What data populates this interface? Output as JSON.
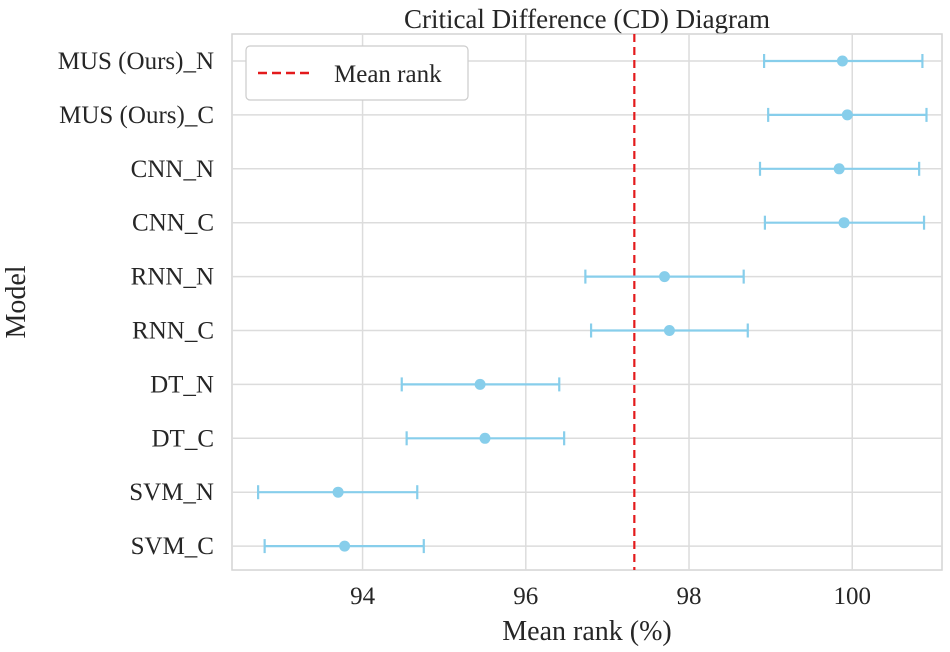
{
  "chart_data": {
    "type": "errorbar",
    "title": "Critical Difference (CD) Diagram",
    "xlabel": "Mean rank (%)",
    "ylabel": "Model",
    "xlim": [
      92.4,
      101.1
    ],
    "xticks": [
      94,
      96,
      98,
      100
    ],
    "grid": true,
    "legend_position": "top-left",
    "legend": [
      {
        "label": "Mean rank",
        "style": "dashed",
        "color": "#e31a1c"
      }
    ],
    "mean_rank_line": 97.33,
    "series_color": "#87ceeb",
    "models": [
      {
        "name": "MUS (Ours)_N",
        "value": 99.88,
        "lower": 98.92,
        "upper": 100.86
      },
      {
        "name": "MUS (Ours)_C",
        "value": 99.94,
        "lower": 98.97,
        "upper": 100.91
      },
      {
        "name": "CNN_N",
        "value": 99.84,
        "lower": 98.87,
        "upper": 100.82
      },
      {
        "name": "CNN_C",
        "value": 99.9,
        "lower": 98.93,
        "upper": 100.88
      },
      {
        "name": "RNN_N",
        "value": 97.7,
        "lower": 96.73,
        "upper": 98.67
      },
      {
        "name": "RNN_C",
        "value": 97.76,
        "lower": 96.8,
        "upper": 98.72
      },
      {
        "name": "DT_N",
        "value": 95.44,
        "lower": 94.48,
        "upper": 96.41
      },
      {
        "name": "DT_C",
        "value": 95.5,
        "lower": 94.54,
        "upper": 96.47
      },
      {
        "name": "SVM_N",
        "value": 93.7,
        "lower": 92.72,
        "upper": 94.67
      },
      {
        "name": "SVM_C",
        "value": 93.78,
        "lower": 92.8,
        "upper": 94.75
      }
    ]
  }
}
